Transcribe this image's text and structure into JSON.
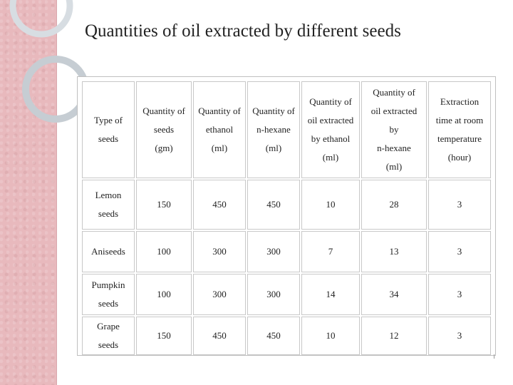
{
  "title": "Quantities of oil extracted by different seeds",
  "table": {
    "headers": [
      [
        "Type of",
        "seeds"
      ],
      [
        "Quantity of",
        "seeds",
        "(gm)"
      ],
      [
        "Quantity of",
        "ethanol",
        "(ml)"
      ],
      [
        "Quantity of",
        "n-hexane",
        "(ml)"
      ],
      [
        "Quantity of",
        "oil extracted",
        "by ethanol",
        "(ml)"
      ],
      [
        "Quantity of",
        "oil extracted",
        "by",
        "n-hexane",
        "(ml)"
      ],
      [
        "Extraction",
        "time at room",
        "temperature",
        "(hour)"
      ]
    ],
    "rows": [
      {
        "seed": [
          "Lemon",
          "seeds"
        ],
        "cells": [
          "150",
          "450",
          "450",
          "10",
          "28",
          "3"
        ]
      },
      {
        "seed": [
          "Aniseeds"
        ],
        "cells": [
          "100",
          "300",
          "300",
          "7",
          "13",
          "3"
        ]
      },
      {
        "seed": [
          "Pumpkin",
          "seeds"
        ],
        "cells": [
          "100",
          "300",
          "300",
          "14",
          "34",
          "3"
        ]
      },
      {
        "seed": [
          "Grape",
          "seeds"
        ],
        "cells": [
          "150",
          "450",
          "450",
          "10",
          "12",
          "3"
        ]
      }
    ]
  }
}
